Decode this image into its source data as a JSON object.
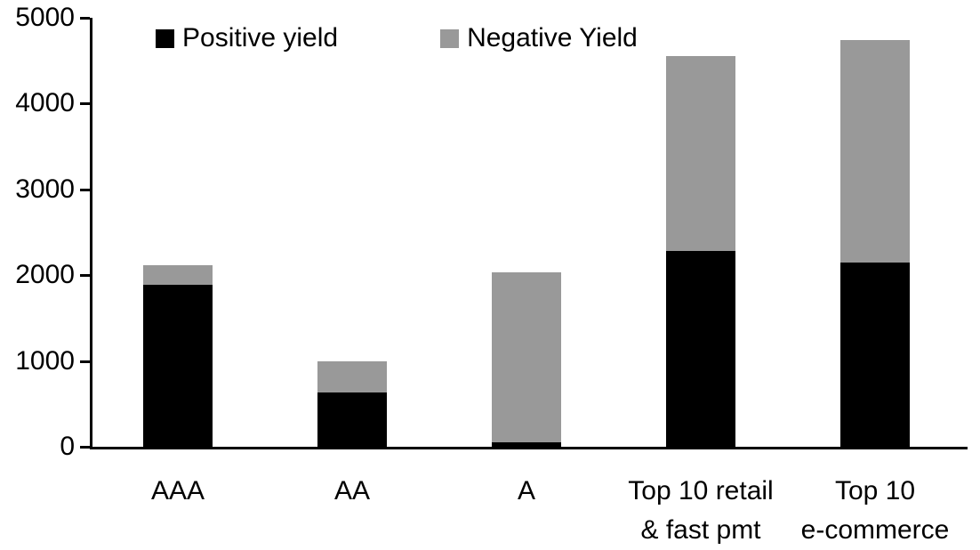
{
  "chart_data": {
    "type": "bar",
    "stacked": true,
    "title": "",
    "xlabel": "",
    "ylabel": "",
    "categories": [
      "AAA",
      "AA",
      "A",
      "Top 10 retail\n& fast pmt",
      "Top 10\ne-commerce"
    ],
    "series": [
      {
        "name": "Positive yield",
        "color": "#000000",
        "values": [
          1890,
          630,
          50,
          2280,
          2150
        ]
      },
      {
        "name": "Negative Yield",
        "color": "#999999",
        "values": [
          230,
          370,
          1980,
          2270,
          2590
        ]
      }
    ],
    "totals": [
      2120,
      1000,
      2030,
      4550,
      4740
    ],
    "ylim": [
      0,
      5000
    ],
    "yticks": [
      0,
      1000,
      2000,
      3000,
      4000,
      5000
    ],
    "legend_position": "top",
    "grid": false,
    "background_color": "#ffffff",
    "axis_color": "#000000"
  }
}
